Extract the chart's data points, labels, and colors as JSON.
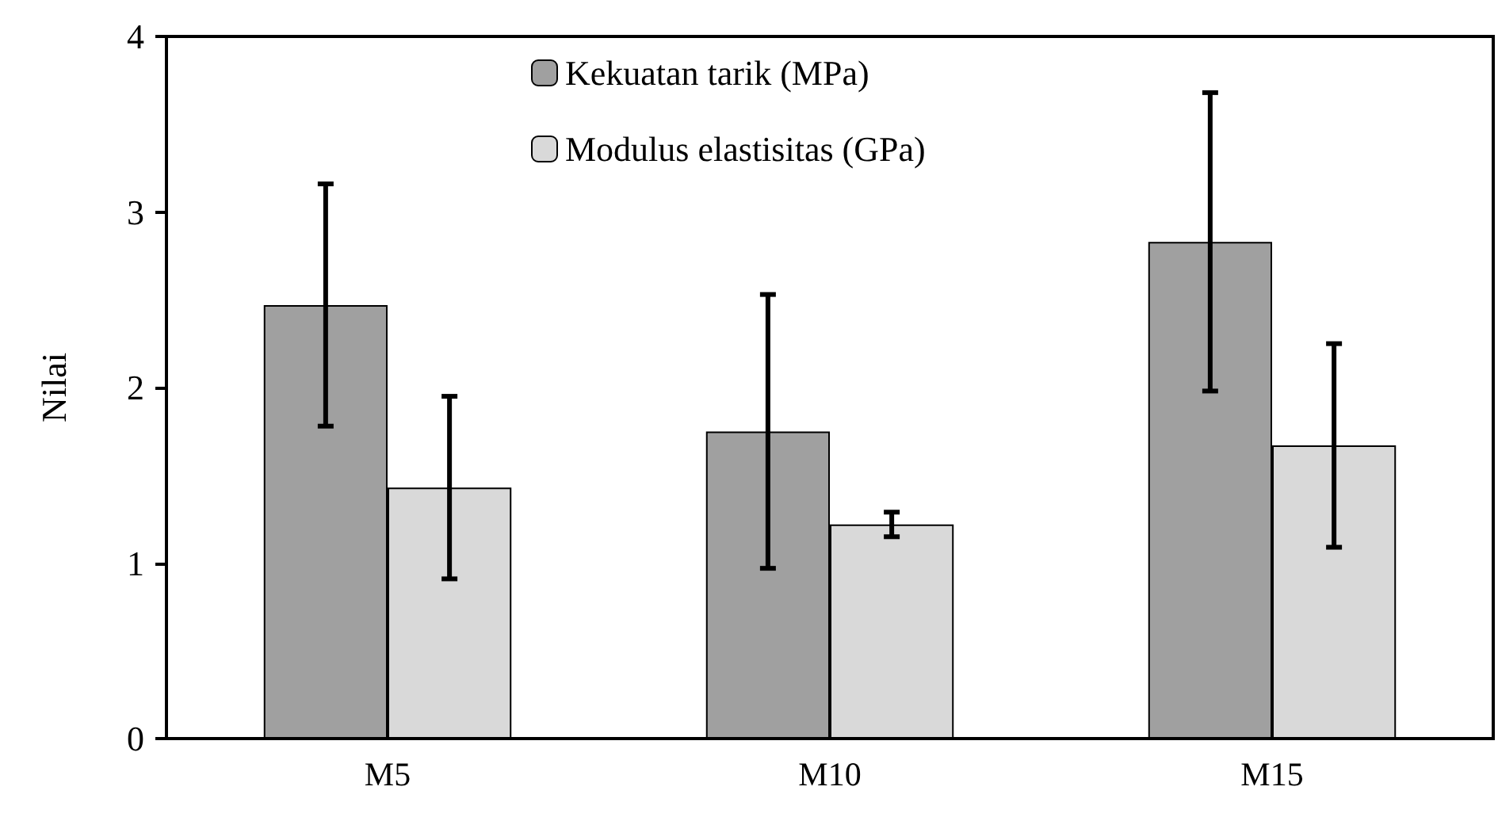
{
  "chart_data": {
    "type": "bar",
    "ylabel": "Nilai",
    "categories": [
      "M5",
      "M10",
      "M15"
    ],
    "series": [
      {
        "name": "Kekuatan tarik (MPa)",
        "color": "#a0a0a0",
        "values": [
          2.47,
          1.75,
          2.83
        ],
        "errors": [
          0.69,
          0.78,
          0.85
        ]
      },
      {
        "name": "Modulus elastisitas (GPa)",
        "color": "#d9d9d9",
        "values": [
          1.43,
          1.22,
          1.67
        ],
        "errors": [
          0.52,
          0.07,
          0.58
        ]
      }
    ],
    "ylim": [
      0,
      4
    ],
    "yticks": [
      0,
      1,
      2,
      3,
      4
    ],
    "grid": false,
    "legend": "top"
  }
}
